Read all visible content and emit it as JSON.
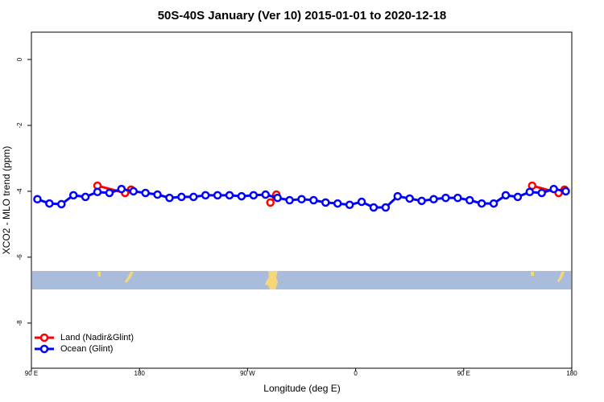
{
  "chart_data": {
    "type": "line",
    "title": "50S-40S January (Ver 10)   2015-01-01 to 2020-12-18",
    "x_label": "Longitude (deg E)",
    "y_label": "XCO2 - MLO trend (ppm)",
    "xlim": [
      90,
      540
    ],
    "ylim": [
      -9.37,
      0.83
    ],
    "xticks": [
      {
        "value": 90,
        "label": "90 E"
      },
      {
        "value": 180,
        "label": "180"
      },
      {
        "value": 270,
        "label": "90 W"
      },
      {
        "value": 360,
        "label": "0"
      },
      {
        "value": 450,
        "label": "90 E"
      },
      {
        "value": 540,
        "label": "180"
      }
    ],
    "yticks": [
      0,
      -2,
      -4,
      -6,
      -8
    ],
    "legend_position": "bottom-left",
    "series": [
      {
        "name": "Land (Nadir&Glint)",
        "color": "#ff0000",
        "x": [
          145,
          168,
          173,
          230,
          289,
          294,
          400,
          507,
          529,
          534
        ],
        "values": [
          -3.83,
          -4.05,
          -3.95,
          null,
          -4.34,
          -4.1,
          null,
          -3.83,
          -4.05,
          -3.95
        ]
      },
      {
        "name": "Ocean (Glint)",
        "color": "#0000ff",
        "x": [
          95,
          105,
          115,
          125,
          135,
          145,
          155,
          165,
          175,
          185,
          195,
          205,
          215,
          225,
          235,
          245,
          255,
          265,
          275,
          285,
          295,
          305,
          315,
          325,
          335,
          345,
          355,
          365,
          375,
          385,
          395,
          405,
          415,
          425,
          435,
          445,
          455,
          465,
          475,
          485,
          495,
          505,
          515,
          525,
          535
        ],
        "values": [
          -4.24,
          -4.37,
          -4.39,
          -4.12,
          -4.17,
          -4.02,
          -4.05,
          -3.93,
          -4.0,
          -4.05,
          -4.1,
          -4.2,
          -4.17,
          -4.17,
          -4.12,
          -4.12,
          -4.12,
          -4.15,
          -4.12,
          -4.1,
          -4.2,
          -4.27,
          -4.24,
          -4.27,
          -4.34,
          -4.37,
          -4.41,
          -4.32,
          -4.49,
          -4.49,
          -4.15,
          -4.22,
          -4.29,
          -4.24,
          -4.2,
          -4.2,
          -4.27,
          -4.37,
          -4.37,
          -4.12,
          -4.17,
          -4.02,
          -4.05,
          -3.93,
          -4.0
        ]
      }
    ]
  }
}
